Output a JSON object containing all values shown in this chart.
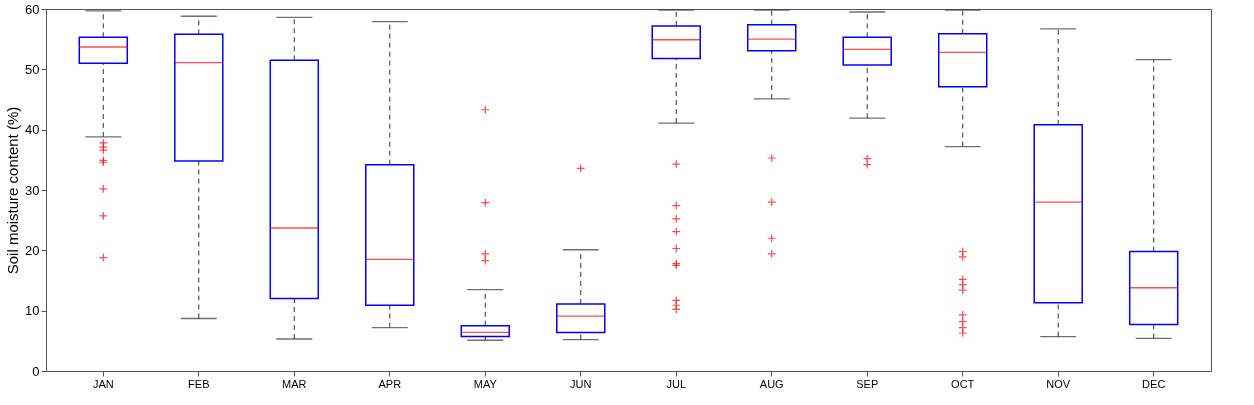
{
  "chart_data": {
    "type": "box",
    "ylabel": "Soil moisture content (%)",
    "categories": [
      "JAN",
      "FEB",
      "MAR",
      "APR",
      "MAY",
      "JUN",
      "JUL",
      "AUG",
      "SEP",
      "OCT",
      "NOV",
      "DEC"
    ],
    "ylim": [
      0,
      60
    ],
    "yticks": [
      0,
      10,
      20,
      30,
      40,
      50,
      60
    ],
    "grid": false,
    "marker": "cross",
    "line_style": "dashed",
    "series": [
      {
        "color": "#0000ff",
        "boxes": [
          {
            "low": 38.8,
            "q1": 51.0,
            "median": 53.7,
            "q3": 55.3,
            "high": 59.7,
            "outliers": [
              37.8,
              37.1,
              36.6,
              34.9,
              34.6,
              30.2,
              25.7,
              18.8
            ]
          },
          {
            "low": 8.7,
            "q1": 34.8,
            "median": 51.1,
            "q3": 55.8,
            "high": 58.8
          },
          {
            "low": 5.3,
            "q1": 12.0,
            "median": 23.7,
            "q3": 51.5,
            "high": 58.6
          },
          {
            "low": 7.2,
            "q1": 10.9,
            "median": 18.5,
            "q3": 34.2,
            "high": 57.9
          },
          {
            "low": 5.1,
            "q1": 5.7,
            "median": 6.4,
            "q3": 7.5,
            "high": 13.5,
            "outliers": [
              43.3,
              27.9,
              19.4,
              18.3
            ]
          },
          {
            "low": 5.2,
            "q1": 6.4,
            "median": 9.1,
            "q3": 11.1,
            "high": 20.1,
            "outliers": [
              33.6
            ]
          },
          {
            "low": 41.1,
            "q1": 51.8,
            "median": 54.9,
            "q3": 57.2,
            "high": 59.8,
            "outliers": [
              34.3,
              27.4,
              25.2,
              23.1,
              20.3,
              17.8,
              17.5,
              11.7,
              10.9,
              10.2
            ]
          },
          {
            "low": 45.1,
            "q1": 53.1,
            "median": 55.0,
            "q3": 57.4,
            "high": 59.8,
            "outliers": [
              35.3,
              28.0,
              22.0,
              19.4
            ]
          },
          {
            "low": 41.9,
            "q1": 50.7,
            "median": 53.3,
            "q3": 55.3,
            "high": 59.5,
            "outliers": [
              35.2,
              34.2
            ]
          },
          {
            "low": 37.2,
            "q1": 47.1,
            "median": 52.8,
            "q3": 55.9,
            "high": 59.8,
            "outliers": [
              19.8,
              18.9,
              15.2,
              14.3,
              13.4,
              9.3,
              8.2,
              7.2,
              6.3
            ]
          },
          {
            "low": 5.7,
            "q1": 11.3,
            "median": 28.0,
            "q3": 40.8,
            "high": 56.7
          },
          {
            "low": 5.4,
            "q1": 7.7,
            "median": 13.8,
            "q3": 19.8,
            "high": 51.6
          }
        ]
      }
    ]
  }
}
